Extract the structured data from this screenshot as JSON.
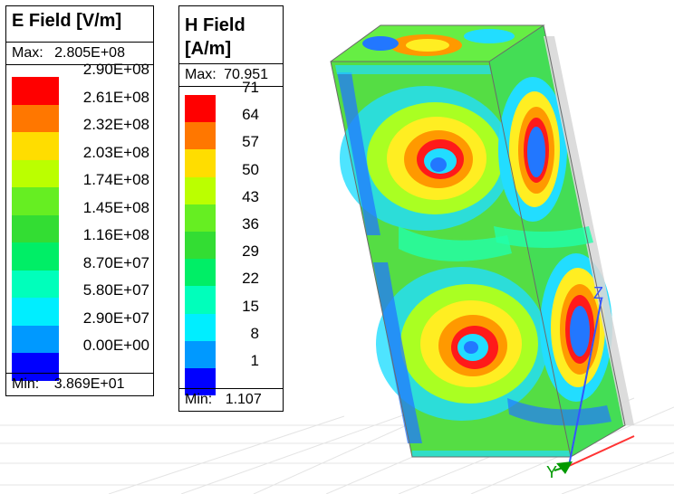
{
  "e_field_legend": {
    "title": "E Field [V/m]",
    "max_label": "Max:",
    "max_value": "2.805E+08",
    "min_label": "Min:",
    "min_value": "3.869E+01",
    "ticks": [
      "2.90E+08",
      "2.61E+08",
      "2.32E+08",
      "2.03E+08",
      "1.74E+08",
      "1.45E+08",
      "1.16E+08",
      "8.70E+07",
      "5.80E+07",
      "2.90E+07",
      "0.00E+00"
    ],
    "colors": [
      "#ff0000",
      "#ff7700",
      "#ffdd00",
      "#bbff00",
      "#66ee22",
      "#33dd33",
      "#00ee66",
      "#00ffbb",
      "#00eeff",
      "#0099ff",
      "#0000ff"
    ]
  },
  "h_field_legend": {
    "title_line1": "H Field",
    "title_line2": "[A/m]",
    "max_label": "Max:",
    "max_value": "70.951",
    "min_label": "Min:",
    "min_value": "1.107",
    "ticks": [
      "71",
      "64",
      "57",
      "50",
      "43",
      "36",
      "29",
      "22",
      "15",
      "8",
      "1"
    ],
    "colors": [
      "#ff0000",
      "#ff7700",
      "#ffdd00",
      "#bbff00",
      "#66ee22",
      "#33dd33",
      "#00ee66",
      "#00ffbb",
      "#00eeff",
      "#0099ff",
      "#0000ff"
    ]
  },
  "axes": {
    "z_label": "Z",
    "y_label": "Y",
    "z_color": "#3355ff",
    "y_color": "#009900"
  },
  "field_palette": {
    "high": "#ff1a1a",
    "orange": "#ff9900",
    "yellow": "#ffee22",
    "lime": "#aaff22",
    "green": "#44dd44",
    "teal": "#22ffaa",
    "cyan": "#22ddff",
    "blue": "#2277ff",
    "grey": "#d8d8d8"
  }
}
